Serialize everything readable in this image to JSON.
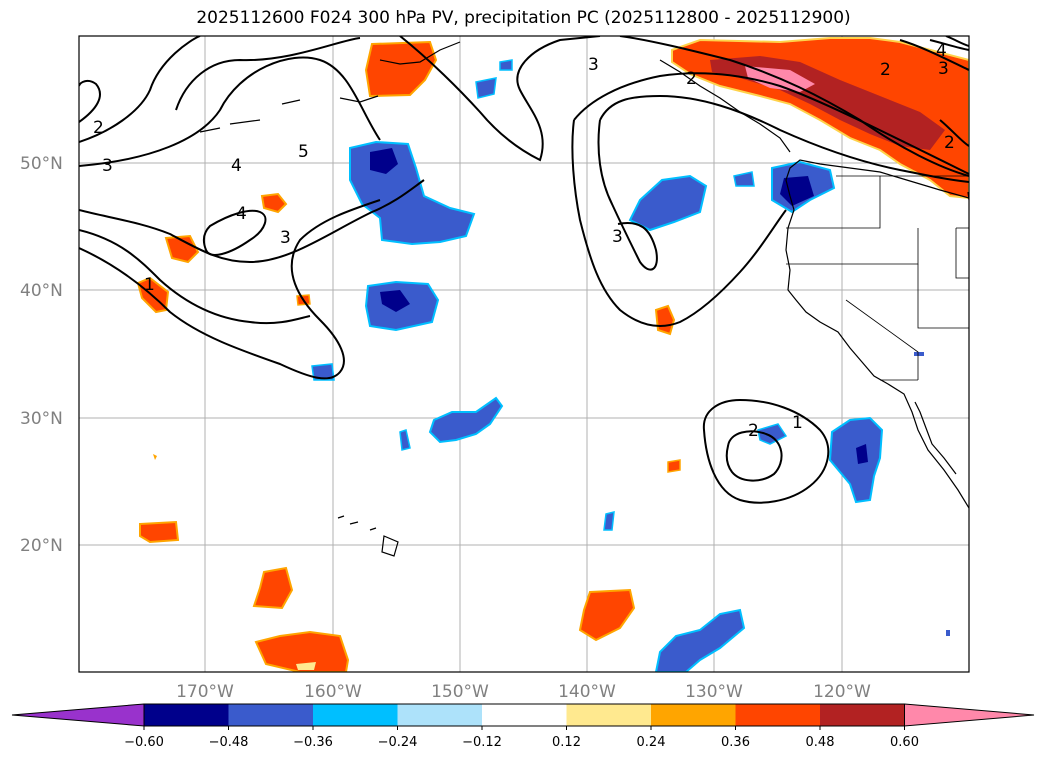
{
  "title": "2025112600 F024 300 hPa PV, precipitation PC (2025112800 - 2025112900)",
  "map": {
    "lat_labels": [
      "50°N",
      "40°N",
      "30°N",
      "20°N"
    ],
    "lon_labels": [
      "170°W",
      "160°W",
      "150°W",
      "140°W",
      "130°W",
      "120°W"
    ],
    "extent": {
      "lon_min": -180,
      "lon_max": -110,
      "lat_min": 10,
      "lat_max": 60
    },
    "contour_labels": [
      "2",
      "3",
      "4",
      "5",
      "4",
      "3",
      "1",
      "3",
      "3",
      "2",
      "2",
      "3",
      "4",
      "2",
      "2",
      "1"
    ]
  },
  "colorbar": {
    "ticks": [
      "−0.60",
      "−0.48",
      "−0.36",
      "−0.24",
      "−0.12",
      "0.12",
      "0.24",
      "0.36",
      "0.48",
      "0.60"
    ],
    "colors": [
      "#9932CC",
      "#00008B",
      "#3A5BCC",
      "#00BFFF",
      "#ADE2FA",
      "#FFFFFF",
      "#FFE98F",
      "#FFA500",
      "#FF4500",
      "#B22222",
      "#FF88AA"
    ]
  }
}
